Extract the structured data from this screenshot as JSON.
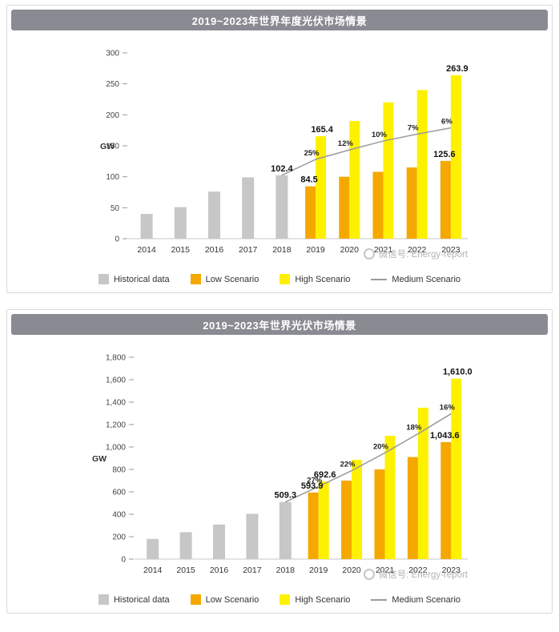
{
  "page": {
    "watermark_text": "微信号: Energy-report"
  },
  "colors": {
    "historical": "#c7c7c7",
    "low": "#f5a800",
    "high": "#fdf100",
    "medium_line": "#9b9b9b",
    "title_bar_bg": "#8a8a92",
    "card_border": "#d9d9d9",
    "watermark": "#b3b3b3"
  },
  "legend": {
    "historical": "Historical data",
    "low": "Low Scenario",
    "high": "High Scenario",
    "medium": "Medium Scenario"
  },
  "chart_data": [
    {
      "type": "bar",
      "title": "2019~2023年世界年度光伏市场情景",
      "ylabel": "GW",
      "ylim": [
        0,
        300
      ],
      "ytick_step": 50,
      "ytick_labels": [
        "0",
        "50",
        "100",
        "150",
        "200",
        "250",
        "300"
      ],
      "categories": [
        "2014",
        "2015",
        "2016",
        "2017",
        "2018",
        "2019",
        "2020",
        "2021",
        "2022",
        "2023"
      ],
      "grid": false,
      "legend_position": "bottom",
      "series": [
        {
          "name": "Historical data",
          "role": "historical",
          "type": "bar",
          "values": [
            40,
            51,
            76,
            99,
            102.4,
            null,
            null,
            null,
            null,
            null
          ]
        },
        {
          "name": "Low Scenario",
          "role": "low",
          "type": "bar",
          "values": [
            null,
            null,
            null,
            null,
            null,
            84.5,
            100,
            108,
            115,
            125.6
          ]
        },
        {
          "name": "High Scenario",
          "role": "high",
          "type": "bar",
          "values": [
            null,
            null,
            null,
            null,
            null,
            165.4,
            190,
            220,
            240,
            263.9
          ]
        },
        {
          "name": "Medium Scenario",
          "role": "medium",
          "type": "line",
          "values": [
            null,
            null,
            null,
            null,
            102.4,
            128.0,
            143.4,
            157.7,
            168.8,
            178.9
          ]
        }
      ],
      "bar_labels": [
        {
          "category": "2018",
          "series": "Historical data",
          "text": "102.4"
        },
        {
          "category": "2019",
          "series": "Low Scenario",
          "text": "84.5"
        },
        {
          "category": "2019",
          "series": "High Scenario",
          "text": "165.4"
        },
        {
          "category": "2023",
          "series": "Low Scenario",
          "text": "125.6"
        },
        {
          "category": "2023",
          "series": "High Scenario",
          "text": "263.9"
        }
      ],
      "line_labels": [
        {
          "category": "2019",
          "text": "25%"
        },
        {
          "category": "2020",
          "text": "12%"
        },
        {
          "category": "2021",
          "text": "10%"
        },
        {
          "category": "2022",
          "text": "7%"
        },
        {
          "category": "2023",
          "text": "6%"
        }
      ]
    },
    {
      "type": "bar",
      "title": "2019~2023年世界光伏市场情景",
      "ylabel": "GW",
      "ylim": [
        0,
        1800
      ],
      "ytick_step": 200,
      "ytick_labels": [
        "0",
        "200",
        "400",
        "600",
        "800",
        "1,000",
        "1,200",
        "1,400",
        "1,600",
        "1,800"
      ],
      "categories": [
        "2014",
        "2015",
        "2016",
        "2017",
        "2018",
        "2019",
        "2020",
        "2021",
        "2022",
        "2023"
      ],
      "grid": false,
      "legend_position": "bottom",
      "series": [
        {
          "name": "Historical data",
          "role": "historical",
          "type": "bar",
          "values": [
            180,
            240,
            308,
            404,
            509.3,
            null,
            null,
            null,
            null,
            null
          ]
        },
        {
          "name": "Low Scenario",
          "role": "low",
          "type": "bar",
          "values": [
            null,
            null,
            null,
            null,
            null,
            593.9,
            700,
            800,
            910,
            1043.6
          ]
        },
        {
          "name": "High Scenario",
          "role": "high",
          "type": "bar",
          "values": [
            null,
            null,
            null,
            null,
            null,
            692.6,
            885,
            1100,
            1350,
            1610.0
          ]
        },
        {
          "name": "Medium Scenario",
          "role": "medium",
          "type": "line",
          "values": [
            null,
            null,
            null,
            null,
            509.3,
            646.8,
            789.1,
            946.9,
            1117.3,
            1296.1
          ]
        }
      ],
      "bar_labels": [
        {
          "category": "2018",
          "series": "Historical data",
          "text": "509.3"
        },
        {
          "category": "2019",
          "series": "Low Scenario",
          "text": "593.9"
        },
        {
          "category": "2019",
          "series": "High Scenario",
          "text": "692.6"
        },
        {
          "category": "2023",
          "series": "Low Scenario",
          "text": "1,043.6"
        },
        {
          "category": "2023",
          "series": "High Scenario",
          "text": "1,610.0"
        }
      ],
      "line_labels": [
        {
          "category": "2019",
          "text": "27%"
        },
        {
          "category": "2020",
          "text": "22%"
        },
        {
          "category": "2021",
          "text": "20%"
        },
        {
          "category": "2022",
          "text": "18%"
        },
        {
          "category": "2023",
          "text": "16%"
        }
      ]
    }
  ]
}
